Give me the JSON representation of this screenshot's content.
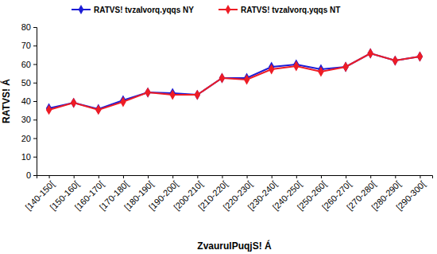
{
  "chart_data": {
    "type": "line",
    "x_label": "ZvaurulPuqjS! Á",
    "y_label": "RATVS! Á",
    "categories": [
      "[140-150[",
      "[150-160[",
      "[160-170[",
      "[170-180[",
      "[180-190[",
      "[190-200[",
      "[200-210[",
      "[210-220[",
      "[220-230[",
      "[230-240[",
      "[240-250[",
      "[250-260[",
      "[260-270[",
      "[270-280[",
      "[280-290[",
      "[290-300["
    ],
    "series": [
      {
        "name": "RATVS! tvzalvorq.yqqs NY",
        "color": "#1c1cd6",
        "marker": "diamond",
        "values": [
          36.1,
          39.1,
          35.7,
          40.4,
          44.7,
          44.3,
          43.4,
          52.5,
          52.5,
          58.5,
          59.8,
          57.2,
          58.5,
          65.8,
          61.9,
          64.1
        ]
      },
      {
        "name": "RATVS! tvzalvorq.yqqs NT",
        "color": "#ee1c25",
        "marker": "diamond",
        "values": [
          35.3,
          39.1,
          35.3,
          39.6,
          44.7,
          43.4,
          43.4,
          52.5,
          51.6,
          57.2,
          58.9,
          55.9,
          58.5,
          65.8,
          61.9,
          64.1
        ]
      }
    ],
    "ylim": [
      0,
      80
    ],
    "yticks": [
      0,
      10,
      20,
      30,
      40,
      50,
      60,
      70,
      80
    ],
    "grid": false,
    "legend": "top"
  }
}
